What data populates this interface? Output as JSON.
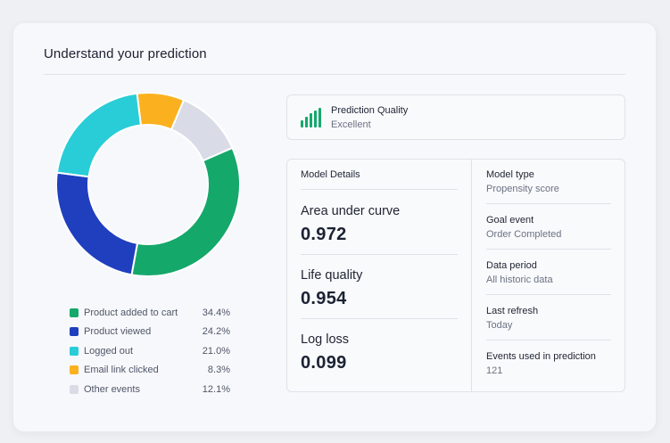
{
  "card": {
    "title": "Understand your prediction"
  },
  "chart_data": {
    "type": "pie",
    "categories": [
      "Product added to cart",
      "Product viewed",
      "Logged out",
      "Email link clicked",
      "Other events"
    ],
    "values": [
      34.4,
      24.2,
      21.0,
      8.3,
      12.1
    ],
    "value_labels": [
      "34.4%",
      "24.2%",
      "21.0%",
      "8.3%",
      "12.1%"
    ],
    "colors": [
      "#15a86b",
      "#1f3fbf",
      "#29cdd7",
      "#fbb11f",
      "#d9dce6"
    ],
    "donut": true,
    "legend": "bottom"
  },
  "quality": {
    "title": "Prediction Quality",
    "value": "Excellent",
    "icon": "signal-bars-icon",
    "color": "#15a86b"
  },
  "details": {
    "heading": "Model Details",
    "metrics": [
      {
        "label": "Area under curve",
        "value": "0.972"
      },
      {
        "label": "Life quality",
        "value": "0.954"
      },
      {
        "label": "Log loss",
        "value": "0.099"
      }
    ],
    "info": [
      {
        "label": "Model type",
        "value": "Propensity score"
      },
      {
        "label": "Goal event",
        "value": "Order Completed"
      },
      {
        "label": "Data period",
        "value": "All historic data"
      },
      {
        "label": "Last refresh",
        "value": "Today"
      },
      {
        "label": "Events used in prediction",
        "value": "121"
      }
    ]
  }
}
